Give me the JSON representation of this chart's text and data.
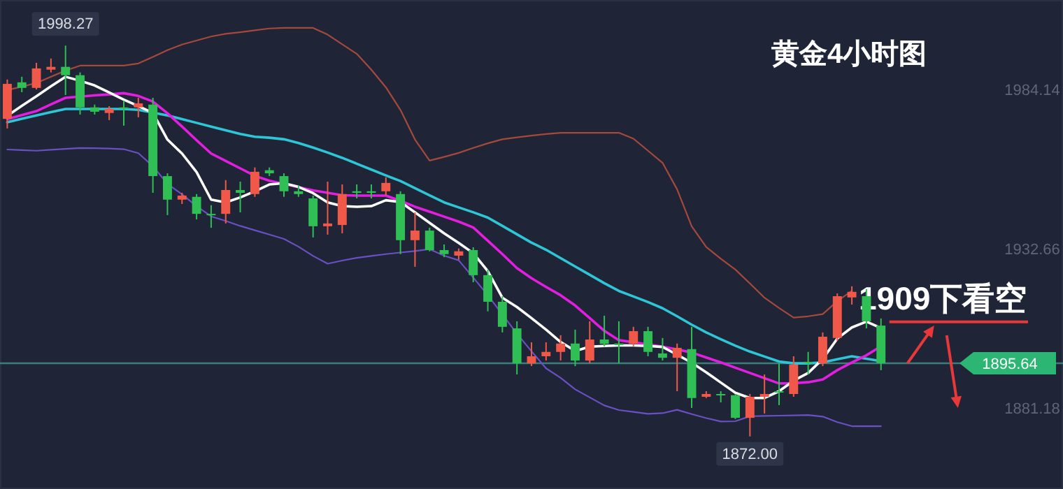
{
  "chart_data": {
    "type": "candlestick",
    "title": "黄金4小时图",
    "categories": [
      null,
      null,
      null,
      null,
      null,
      null,
      null,
      null,
      null,
      null,
      null,
      null,
      null,
      null,
      null,
      null,
      null,
      null,
      null,
      null,
      null,
      null,
      null,
      null,
      null,
      null,
      null,
      null,
      null,
      null,
      null,
      null,
      null,
      null,
      null,
      null,
      null,
      null,
      null,
      null,
      null,
      null,
      null,
      null,
      null,
      null,
      null,
      null,
      null,
      null,
      null,
      null,
      null,
      null,
      null,
      null,
      null,
      null,
      null,
      null,
      null,
      null,
      null,
      null,
      null,
      null,
      null,
      null,
      null,
      null,
      null,
      null,
      null
    ],
    "ohlc": [
      [
        1974.6,
        1987.3,
        1971.5,
        1985.9
      ],
      [
        1986.4,
        1988.2,
        1983.2,
        1984.6
      ],
      [
        1984.6,
        1992.7,
        1984.1,
        1990.9
      ],
      [
        1990.5,
        1994.1,
        1989.6,
        1991.4
      ],
      [
        1991.4,
        1998.27,
        1982.3,
        1988.7
      ],
      [
        1988.7,
        1989.6,
        1976.0,
        1978.3
      ],
      [
        1978.3,
        1979.2,
        1976.0,
        1976.9
      ],
      [
        1976.5,
        1978.7,
        1974.2,
        1977.8
      ],
      [
        1978.3,
        1980.5,
        1972.4,
        1977.8
      ],
      [
        1978.3,
        1981.4,
        1975.1,
        1979.6
      ],
      [
        1979.2,
        1981.4,
        1950.7,
        1956.1
      ],
      [
        1956.1,
        1957.0,
        1943.5,
        1948.5
      ],
      [
        1948.5,
        1950.7,
        1947.1,
        1949.8
      ],
      [
        1949.4,
        1950.3,
        1942.1,
        1943.9
      ],
      [
        1943.9,
        1946.7,
        1939.4,
        1943.5
      ],
      [
        1943.9,
        1954.8,
        1940.8,
        1951.6
      ],
      [
        1951.6,
        1954.3,
        1944.4,
        1950.7
      ],
      [
        1950.3,
        1958.9,
        1949.4,
        1957.5
      ],
      [
        1958.0,
        1958.9,
        1956.1,
        1957.0
      ],
      [
        1956.1,
        1957.0,
        1949.4,
        1951.2
      ],
      [
        1951.2,
        1953.0,
        1949.4,
        1950.3
      ],
      [
        1948.9,
        1949.8,
        1936.3,
        1939.9
      ],
      [
        1939.9,
        1954.3,
        1937.2,
        1940.8
      ],
      [
        1940.3,
        1953.4,
        1937.6,
        1950.3
      ],
      [
        1951.2,
        1953.4,
        1948.9,
        1950.7
      ],
      [
        1951.2,
        1953.4,
        1948.9,
        1950.7
      ],
      [
        1951.2,
        1955.7,
        1949.8,
        1953.9
      ],
      [
        1950.3,
        1951.2,
        1930.9,
        1935.4
      ],
      [
        1935.4,
        1944.4,
        1926.8,
        1938.5
      ],
      [
        1938.5,
        1939.4,
        1931.8,
        1932.2
      ],
      [
        1932.2,
        1934.0,
        1929.9,
        1930.9
      ],
      [
        1930.4,
        1932.7,
        1929.1,
        1931.8
      ],
      [
        1932.2,
        1933.1,
        1921.8,
        1924.1
      ],
      [
        1924.1,
        1925.9,
        1912.4,
        1915.5
      ],
      [
        1915.5,
        1917.3,
        1905.6,
        1907.4
      ],
      [
        1906.9,
        1909.2,
        1892.0,
        1895.6
      ],
      [
        1895.6,
        1902.4,
        1894.7,
        1897.9
      ],
      [
        1897.9,
        1902.4,
        1896.5,
        1899.3
      ],
      [
        1899.3,
        1904.7,
        1896.5,
        1902.0
      ],
      [
        1902.0,
        1906.5,
        1894.7,
        1896.5
      ],
      [
        1896.5,
        1909.2,
        1895.6,
        1903.3
      ],
      [
        1903.3,
        1911.0,
        1901.1,
        1901.9
      ],
      [
        1902.0,
        1909.2,
        1895.6,
        1901.5
      ],
      [
        1901.9,
        1907.4,
        1901.1,
        1906.0
      ],
      [
        1906.0,
        1907.4,
        1897.9,
        1899.3
      ],
      [
        1898.8,
        1903.8,
        1896.5,
        1897.4
      ],
      [
        1897.4,
        1902.0,
        1886.6,
        1900.6
      ],
      [
        1900.2,
        1907.4,
        1881.2,
        1884.4
      ],
      [
        1884.8,
        1886.6,
        1884.4,
        1885.7
      ],
      [
        1885.7,
        1886.6,
        1883.0,
        1885.3
      ],
      [
        1885.3,
        1885.7,
        1877.6,
        1878.0
      ],
      [
        1878.0,
        1885.7,
        1872.0,
        1884.8
      ],
      [
        1884.8,
        1892.0,
        1879.4,
        1885.7
      ],
      [
        1886.6,
        1895.6,
        1882.1,
        1886.2
      ],
      [
        1885.7,
        1897.9,
        1884.8,
        1895.2
      ],
      [
        1896.1,
        1899.3,
        1892.0,
        1895.6
      ],
      [
        1895.6,
        1905.6,
        1894.7,
        1904.2
      ],
      [
        1903.8,
        1918.2,
        1902.9,
        1917.3
      ],
      [
        1916.9,
        1920.5,
        1914.6,
        1918.7
      ],
      [
        1917.3,
        1919.6,
        1906.9,
        1909.2
      ],
      [
        1907.8,
        1910.1,
        1893.4,
        1895.64
      ],
      null,
      null,
      null,
      null,
      null,
      null,
      null,
      null,
      null,
      null,
      null,
      null
    ],
    "colors": [
      "#f0594a",
      "#2fbf55",
      "#f0594a",
      "#f0594a",
      "#2fbf55",
      "#2fbf55",
      "#2fbf55",
      "#f0594a",
      "#2fbf55",
      "#f0594a",
      "#2fbf55",
      "#2fbf55",
      "#f0594a",
      "#2fbf55",
      "#2fbf55",
      "#f0594a",
      "#2fbf55",
      "#f0594a",
      "#2fbf55",
      "#2fbf55",
      "#2fbf55",
      "#2fbf55",
      "#f0594a",
      "#f0594a",
      "#2fbf55",
      "#2fbf55",
      "#f0594a",
      "#2fbf55",
      "#f0594a",
      "#2fbf55",
      "#2fbf55",
      "#f0594a",
      "#2fbf55",
      "#2fbf55",
      "#2fbf55",
      "#2fbf55",
      "#f0594a",
      "#f0594a",
      "#f0594a",
      "#2fbf55",
      "#f0594a",
      "#2fbf55",
      "#2fbf55",
      "#f0594a",
      "#2fbf55",
      "#2fbf55",
      "#f0594a",
      "#2fbf55",
      "#f0594a",
      "#2fbf55",
      "#2fbf55",
      "#f0594a",
      "#f0594a",
      "#2fbf55",
      "#f0594a",
      "#2fbf55",
      "#f0594a",
      "#f0594a",
      "#f0594a",
      "#2fbf55",
      "#2fbf55",
      null,
      null,
      null,
      null,
      null,
      null,
      null,
      null,
      null,
      null,
      null,
      null
    ],
    "series": [
      {
        "type": "line",
        "color": "#a4493c",
        "values": [
          1983.9,
          1985.0,
          1986.2,
          1988.2,
          1990.2,
          1991.8,
          1991.8,
          1991.8,
          1991.8,
          1992.5,
          1994.6,
          1996.8,
          1998.6,
          1999.9,
          2001.2,
          2002.1,
          2002.6,
          2003.2,
          2003.8,
          2004.0,
          2004.0,
          2004.0,
          2001.8,
          1998.7,
          1995.6,
          1990.5,
          1984.8,
          1977.5,
          1967.9,
          1961.1,
          1962.3,
          1963.6,
          1965.2,
          1966.7,
          1968.0,
          1968.6,
          1969.2,
          1969.7,
          1970.1,
          1970.1,
          1970.1,
          1970.1,
          1970.1,
          1968.2,
          1964.3,
          1960.4,
          1951.8,
          1939.9,
          1933.2,
          1929.4,
          1925.9,
          1921.4,
          1916.8,
          1913.5,
          1910.4,
          1910.8,
          1911.5,
          1915.7,
          1919.0,
          null,
          null,
          null,
          null,
          null,
          null,
          null,
          null,
          null,
          null,
          null,
          null,
          null,
          null
        ]
      },
      {
        "type": "line",
        "color": "#6b4fc4",
        "values": [
          1964.7,
          1964.5,
          1964.3,
          1964.6,
          1964.9,
          1965.2,
          1965.1,
          1965.0,
          1964.8,
          1963.5,
          1959.3,
          1953.6,
          1950.2,
          1946.4,
          1943.1,
          1941.6,
          1940.0,
          1938.6,
          1937.2,
          1935.8,
          1933.3,
          1930.3,
          1927.8,
          1928.8,
          1929.7,
          1930.3,
          1930.9,
          1931.4,
          1931.9,
          1932.5,
          1930.4,
          1928.9,
          1923.3,
          1917.6,
          1911.4,
          1905.2,
          1899.5,
          1894.0,
          1890.9,
          1887.2,
          1884.6,
          1882.0,
          1880.5,
          1879.9,
          1879.3,
          1879.5,
          1880.6,
          1879.2,
          1877.9,
          1876.8,
          1876.9,
          1878.5,
          1878.6,
          1878.7,
          1878.8,
          1878.9,
          1878.4,
          1876.6,
          1875.3,
          1875.3,
          1875.3,
          null,
          null,
          null,
          null,
          null,
          null,
          null,
          null,
          null,
          null,
          null,
          null
        ]
      },
      {
        "type": "line",
        "color": "#2ec6d6",
        "values": [
          1973.5,
          1974.6,
          1975.7,
          1976.8,
          1977.8,
          1977.8,
          1977.8,
          1977.8,
          1977.8,
          1977.5,
          1976.6,
          1975.7,
          1974.5,
          1973.3,
          1972.1,
          1970.9,
          1969.7,
          1968.8,
          1968.5,
          1968.0,
          1966.8,
          1965.3,
          1963.7,
          1962.0,
          1960.1,
          1958.2,
          1956.3,
          1954.5,
          1952.2,
          1949.9,
          1947.6,
          1946.0,
          1944.4,
          1942.7,
          1940.0,
          1937.3,
          1934.6,
          1932.3,
          1929.6,
          1926.9,
          1924.2,
          1921.5,
          1919.0,
          1917.2,
          1915.4,
          1913.4,
          1910.8,
          1908.1,
          1905.6,
          1903.4,
          1901.3,
          1899.4,
          1897.8,
          1896.2,
          1895.6,
          1895.6,
          1895.9,
          1896.9,
          1897.9,
          1897.1,
          1896.3,
          null,
          null,
          null,
          null,
          null,
          null,
          null,
          null,
          null,
          null,
          null,
          null
        ]
      },
      {
        "type": "line",
        "color": "#e21fe0",
        "values": [
          1974.5,
          1975.8,
          1977.1,
          1979.3,
          1981.4,
          1981.8,
          1982.2,
          1982.5,
          1982.9,
          1982.0,
          1980.2,
          1976.4,
          1972.1,
          1967.7,
          1963.4,
          1961.0,
          1958.6,
          1956.2,
          1954.6,
          1953.6,
          1952.5,
          1951.5,
          1950.7,
          1949.9,
          1949.8,
          1949.8,
          1949.8,
          1948.1,
          1946.2,
          1944.6,
          1943.0,
          1941.4,
          1939.5,
          1935.2,
          1930.9,
          1926.4,
          1923.1,
          1920.3,
          1917.6,
          1914.3,
          1910.2,
          1906.1,
          1903.1,
          1902.4,
          1901.7,
          1901.0,
          1900.1,
          1899.1,
          1897.5,
          1895.9,
          1894.2,
          1892.5,
          1890.8,
          1889.1,
          1889.2,
          1889.5,
          1890.4,
          1893.4,
          1895.9,
          1898.2,
          1901.1,
          null,
          null,
          null,
          null,
          null,
          null,
          null,
          null,
          null,
          null,
          null,
          null
        ]
      },
      {
        "type": "line",
        "color": "#ffffff",
        "values": [
          1975.6,
          1978.8,
          1981.9,
          1985.1,
          1988.2,
          1986.9,
          1985.4,
          1983.1,
          1980.8,
          1978.7,
          1976.5,
          1967.9,
          1963.4,
          1957.4,
          1948.5,
          1947.6,
          1949.2,
          1951.2,
          1953.4,
          1953.8,
          1952.6,
          1950.6,
          1947.6,
          1946.4,
          1946.2,
          1946.4,
          1948.3,
          1947.7,
          1944.4,
          1941.0,
          1937.6,
          1934.5,
          1931.2,
          1925.4,
          1916.8,
          1913.8,
          1910.2,
          1906.5,
          1902.5,
          1899.6,
          1901.0,
          1901.2,
          1901.4,
          1901.4,
          1901.2,
          1900.9,
          1898.4,
          1895.8,
          1892.7,
          1889.4,
          1886.1,
          1884.4,
          1884.4,
          1886.6,
          1890.0,
          1892.5,
          1897.0,
          1903.6,
          1907.2,
          1909.1,
          1907.0,
          null,
          null,
          null,
          null,
          null,
          null,
          null,
          null,
          null,
          null,
          null,
          null
        ]
      }
    ],
    "ylim": [
      1855.0,
      2013.0
    ],
    "yticks": [
      1984.14,
      1932.66,
      1881.18
    ],
    "tick_labels": "y",
    "ref_lines": [
      {
        "axis": "y",
        "value": 1895.64,
        "label": "1895.64",
        "color": "#3b7d7a"
      },
      {
        "axis": "y",
        "value": 1909,
        "color": "#e8383a"
      }
    ],
    "annotations": [
      "1998.27",
      "1872.00",
      {
        "text": "1909下看空",
        "y": 1909
      }
    ]
  }
}
